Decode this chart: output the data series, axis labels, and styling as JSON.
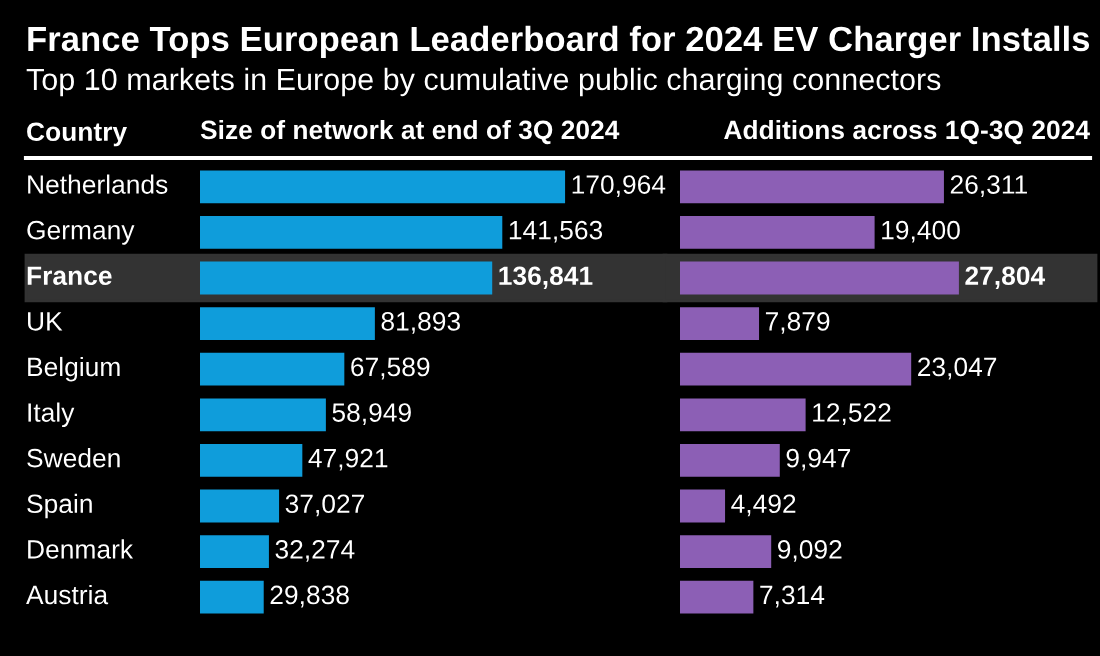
{
  "chart_data": [
    {
      "type": "bar",
      "orientation": "horizontal",
      "title": "France Tops European Leaderboard for 2024 EV Charger Installs",
      "subtitle": "Top 10 markets in Europe by cumulative public charging connectors",
      "ylabel": "Country",
      "xlabel": "Size of network at end of 3Q 2024",
      "categories": [
        "Netherlands",
        "Germany",
        "France",
        "UK",
        "Belgium",
        "Italy",
        "Sweden",
        "Spain",
        "Denmark",
        "Austria"
      ],
      "values": [
        170964,
        141563,
        136841,
        81893,
        67589,
        58949,
        47921,
        37027,
        32274,
        29838
      ],
      "value_labels": [
        "170,964",
        "141,563",
        "136,841",
        "81,893",
        "67,589",
        "58,949",
        "47,921",
        "37,027",
        "32,274",
        "29,838"
      ],
      "color": "#0f9ddb",
      "tick_labels": "y",
      "bands": [
        {
          "axis": "y",
          "from": "France",
          "to": "France",
          "color": "#333333"
        }
      ]
    },
    {
      "type": "bar",
      "orientation": "horizontal",
      "xlabel": "Additions across 1Q-3Q 2024",
      "categories": [
        "Netherlands",
        "Germany",
        "France",
        "UK",
        "Belgium",
        "Italy",
        "Sweden",
        "Spain",
        "Denmark",
        "Austria"
      ],
      "values": [
        26311,
        19400,
        27804,
        7879,
        23047,
        12522,
        9947,
        4492,
        9092,
        7314
      ],
      "value_labels": [
        "26,311",
        "19,400",
        "27,804",
        "7,879",
        "23,047",
        "12,522",
        "9,947",
        "4,492",
        "9,092",
        "7,314"
      ],
      "color": "#8c5fb5",
      "tick_labels": false,
      "bands": [
        {
          "axis": "y",
          "from": "France",
          "to": "France",
          "color": "#333333"
        }
      ]
    }
  ]
}
